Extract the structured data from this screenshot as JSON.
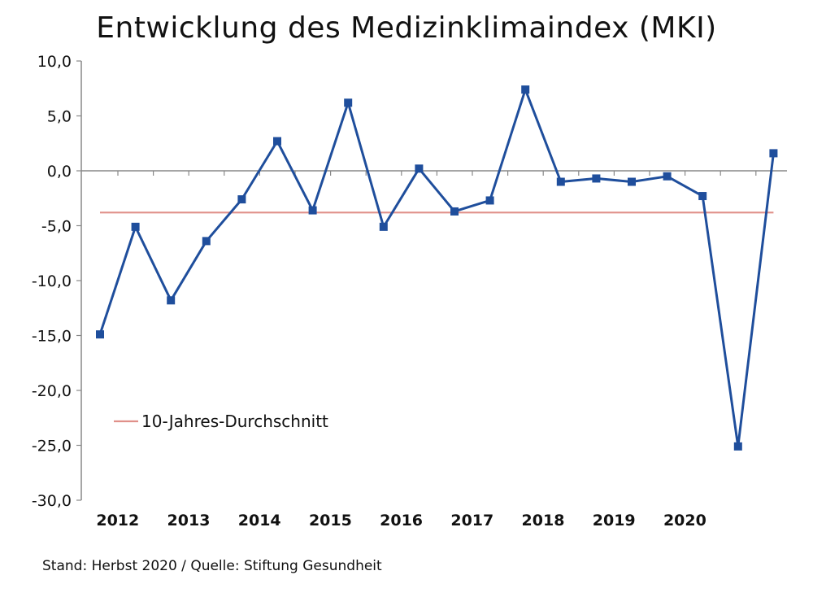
{
  "chart_data": {
    "type": "line",
    "title": "Entwicklung des Medizinklimaindex (MKI)",
    "source_note": "Stand: Herbst 2020 / Quelle: Stiftung Gesundheit",
    "ylim": [
      -30,
      10
    ],
    "y_ticks": [
      "10,0",
      "5,0",
      "0,0",
      "-5,0",
      "-10,0",
      "-15,0",
      "-20,0",
      "-25,0",
      "-30,0"
    ],
    "y_tick_values": [
      10,
      5,
      0,
      -5,
      -10,
      -15,
      -20,
      -25,
      -30
    ],
    "year_labels": [
      "2012",
      "2013",
      "2014",
      "2015",
      "2016",
      "2017",
      "2018",
      "2019",
      "2020"
    ],
    "series": [
      {
        "values": [
          -14.9,
          -5.1,
          -11.8,
          -6.4,
          -2.6,
          2.7,
          -3.6,
          6.2,
          -5.1,
          0.2,
          -3.7,
          -2.7,
          7.4,
          -1.0,
          -0.7,
          -1.0,
          -0.5,
          -2.3,
          -25.1,
          1.6
        ],
        "color": "#1f4e9c"
      }
    ],
    "average_line": {
      "name": "10-Jahres-Durchschnitt",
      "value": -3.8,
      "color": "#e0908a"
    },
    "legend_position": "lower-left",
    "grid": false
  }
}
